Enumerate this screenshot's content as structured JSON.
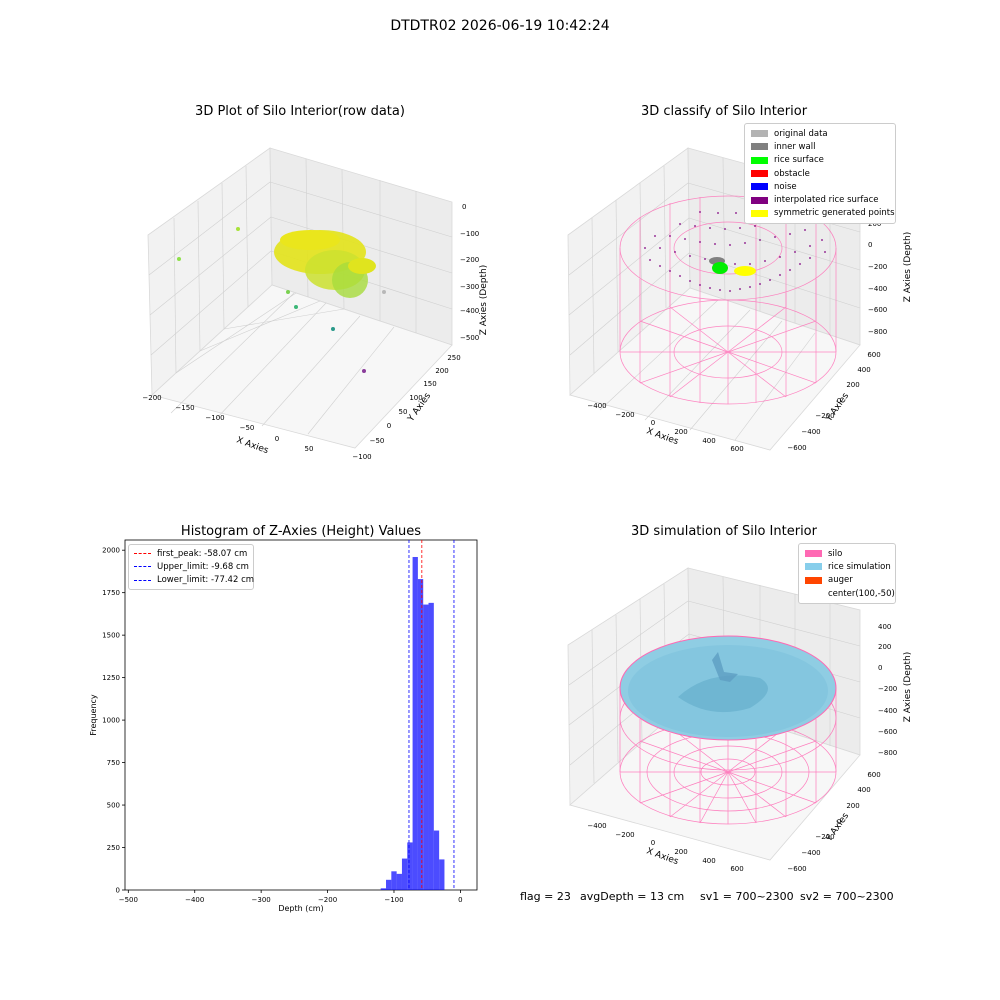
{
  "figure": {
    "suptitle": "DTDTR02 2026-06-19 10:42:24"
  },
  "raw_plot": {
    "title": "3D Plot of Silo Interior(row data)",
    "xlabel": "X Axies",
    "ylabel": "Y Axies",
    "zlabel": "Z Axies (Depth)",
    "x_ticks": [
      "−200",
      "−150",
      "−100",
      "−50",
      "0",
      "50"
    ],
    "y_ticks": [
      "−100",
      "−50",
      "0",
      "50",
      "100",
      "150",
      "200",
      "250"
    ],
    "z_ticks": [
      "0",
      "−100",
      "−200",
      "−300",
      "−400",
      "−500"
    ]
  },
  "classify_plot": {
    "title": "3D classify of Silo Interior",
    "xlabel": "X Axies",
    "ylabel": "Y Axies",
    "zlabel": "Z Axies (Depth)",
    "x_ticks": [
      "−400",
      "−200",
      "0",
      "200",
      "400",
      "600"
    ],
    "y_ticks": [
      "−600",
      "−400",
      "−200",
      "0",
      "200",
      "400",
      "600"
    ],
    "z_ticks": [
      "200",
      "0",
      "−200",
      "−400",
      "−600",
      "−800"
    ],
    "legend": [
      {
        "label": "original data",
        "color": "#b3b3b3"
      },
      {
        "label": "inner wall",
        "color": "#808080"
      },
      {
        "label": "rice surface",
        "color": "#00ff00"
      },
      {
        "label": "obstacle",
        "color": "#ff0000"
      },
      {
        "label": "noise",
        "color": "#0000ff"
      },
      {
        "label": "interpolated rice surface",
        "color": "#800080"
      },
      {
        "label": "symmetric generated points",
        "color": "#ffff00"
      }
    ]
  },
  "simulation_plot": {
    "title": "3D simulation of Silo Interior",
    "xlabel": "X Axies",
    "ylabel": "Y Axies",
    "zlabel": "Z Axies (Depth)",
    "x_ticks": [
      "−400",
      "−200",
      "0",
      "200",
      "400",
      "600"
    ],
    "y_ticks": [
      "−600",
      "−400",
      "−200",
      "0",
      "200",
      "400",
      "600"
    ],
    "z_ticks": [
      "400",
      "200",
      "0",
      "−200",
      "−400",
      "−600",
      "−800"
    ],
    "legend": [
      {
        "label": "silo",
        "color": "#ff69b4"
      },
      {
        "label": "rice simulation",
        "color": "#87ceeb"
      },
      {
        "label": "auger",
        "color": "#ff4500"
      },
      {
        "label": "center(100,-50)",
        "color": ""
      }
    ]
  },
  "status": {
    "flag": "flag = 23",
    "avg_depth": "avgDepth = 13 cm",
    "sv1": "sv1 = 700~2300",
    "sv2": "sv2 = 700~2300"
  },
  "chart_data": {
    "type": "bar",
    "title": "Histogram of Z-Axies (Height) Values",
    "xlabel": "Depth (cm)",
    "ylabel": "Frequency",
    "xlim": [
      -505,
      25
    ],
    "ylim": [
      0,
      2060
    ],
    "x_ticks": [
      -500,
      -400,
      -300,
      -200,
      -100,
      0
    ],
    "x_tick_labels": [
      "−500",
      "−400",
      "−300",
      "−200",
      "−100",
      "0"
    ],
    "y_ticks": [
      0,
      250,
      500,
      750,
      1000,
      1250,
      1500,
      1750,
      2000
    ],
    "bar_color": "#0000ff",
    "bins": [
      {
        "x0": -120,
        "x1": -112,
        "value": 10
      },
      {
        "x0": -112,
        "x1": -104,
        "value": 60
      },
      {
        "x0": -104,
        "x1": -96,
        "value": 110
      },
      {
        "x0": -96,
        "x1": -88,
        "value": 95
      },
      {
        "x0": -88,
        "x1": -80,
        "value": 185
      },
      {
        "x0": -80,
        "x1": -72,
        "value": 280
      },
      {
        "x0": -72,
        "x1": -64,
        "value": 1960
      },
      {
        "x0": -64,
        "x1": -56,
        "value": 1830
      },
      {
        "x0": -56,
        "x1": -48,
        "value": 1680
      },
      {
        "x0": -48,
        "x1": -40,
        "value": 1690
      },
      {
        "x0": -40,
        "x1": -32,
        "value": 350
      },
      {
        "x0": -32,
        "x1": -24,
        "value": 180
      }
    ],
    "vlines": [
      {
        "label": "first_peak: -58.07 cm",
        "x": -58.07,
        "color": "#ff0000"
      },
      {
        "label": "Upper_limit: -9.68 cm",
        "x": -9.68,
        "color": "#0000ff"
      },
      {
        "label": "Lower_limit: -77.42 cm",
        "x": -77.42,
        "color": "#0000ff"
      }
    ],
    "legend_position": "upper left"
  }
}
